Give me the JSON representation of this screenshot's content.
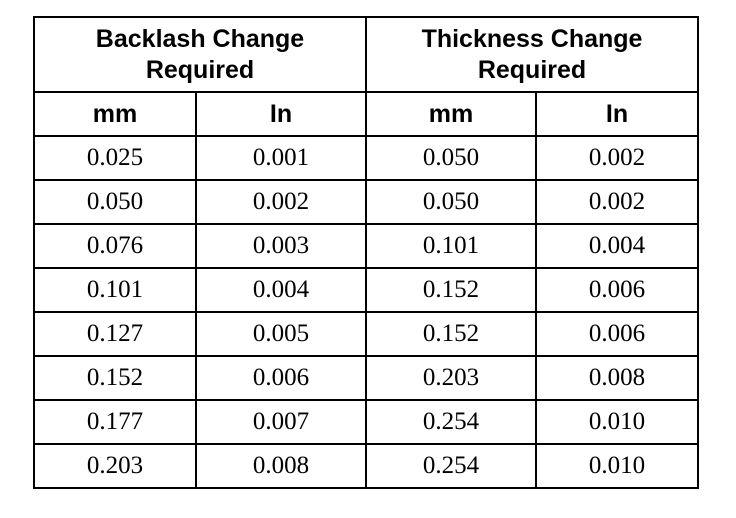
{
  "table": {
    "groups": [
      {
        "line1": "Backlash Change",
        "line2": "Required"
      },
      {
        "line1": "Thickness Change",
        "line2": "Required"
      }
    ],
    "units": [
      "mm",
      "In",
      "mm",
      "In"
    ],
    "rows": [
      [
        "0.025",
        "0.001",
        "0.050",
        "0.002"
      ],
      [
        "0.050",
        "0.002",
        "0.050",
        "0.002"
      ],
      [
        "0.076",
        "0.003",
        "0.101",
        "0.004"
      ],
      [
        "0.101",
        "0.004",
        "0.152",
        "0.006"
      ],
      [
        "0.127",
        "0.005",
        "0.152",
        "0.006"
      ],
      [
        "0.152",
        "0.006",
        "0.203",
        "0.008"
      ],
      [
        "0.177",
        "0.007",
        "0.254",
        "0.010"
      ],
      [
        "0.203",
        "0.008",
        "0.254",
        "0.010"
      ]
    ]
  }
}
